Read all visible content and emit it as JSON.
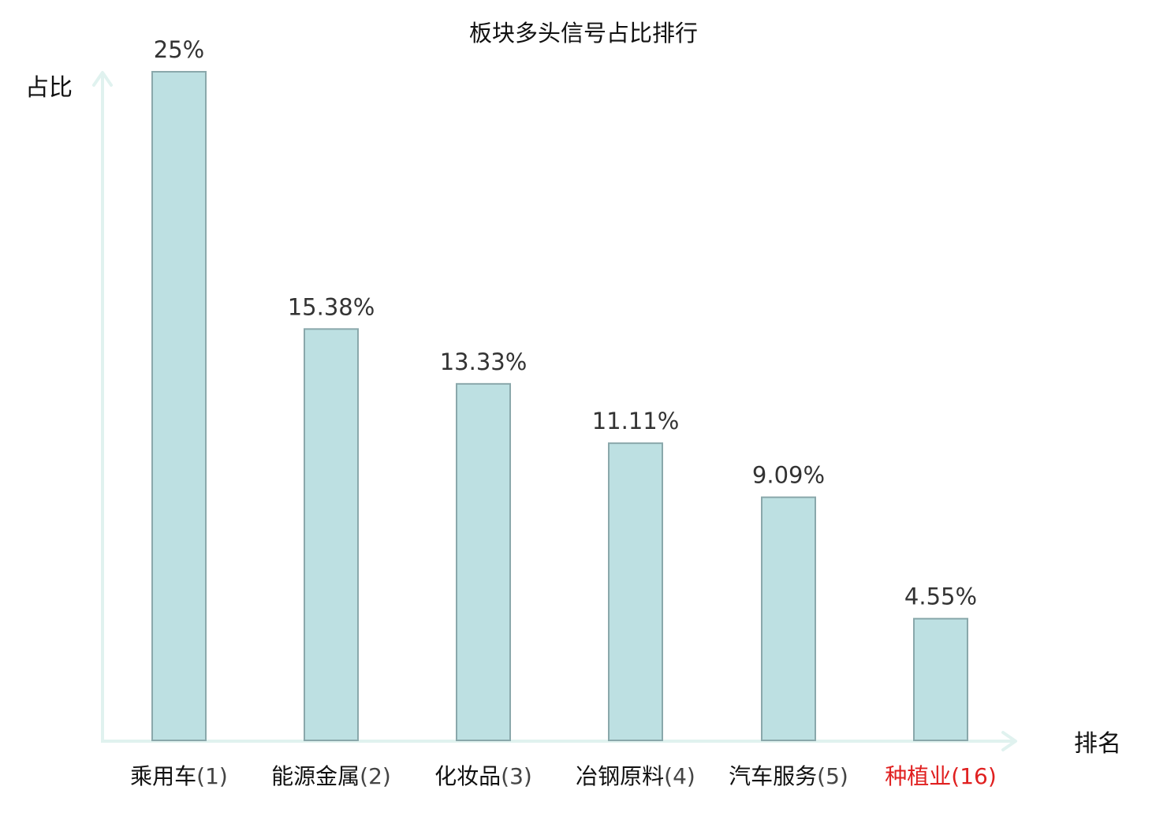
{
  "chart_data": {
    "type": "bar",
    "title": "板块多头信号占比排行",
    "xlabel": "排名",
    "ylabel": "占比",
    "categories": [
      "乘用车",
      "能源金属",
      "化妆品",
      "冶钢原料",
      "汽车服务",
      "种植业"
    ],
    "ranks": [
      "(1)",
      "(2)",
      "(3)",
      "(4)",
      "(5)",
      "(16)"
    ],
    "values": [
      25,
      15.38,
      13.33,
      11.11,
      9.09,
      4.55
    ],
    "value_labels": [
      "25%",
      "15.38%",
      "13.33%",
      "11.11%",
      "9.09%",
      "4.55%"
    ],
    "highlight_index": 5,
    "ylim": [
      0,
      25
    ],
    "grid": false,
    "legend": "none"
  },
  "colors": {
    "bar_fill": "#bde0e2",
    "bar_stroke": "#8aa8ab",
    "axis": "#e0f2ef",
    "label_text": "#111111",
    "rank_text": "#444444",
    "value_text": "#333333",
    "highlight": "#e02020"
  }
}
